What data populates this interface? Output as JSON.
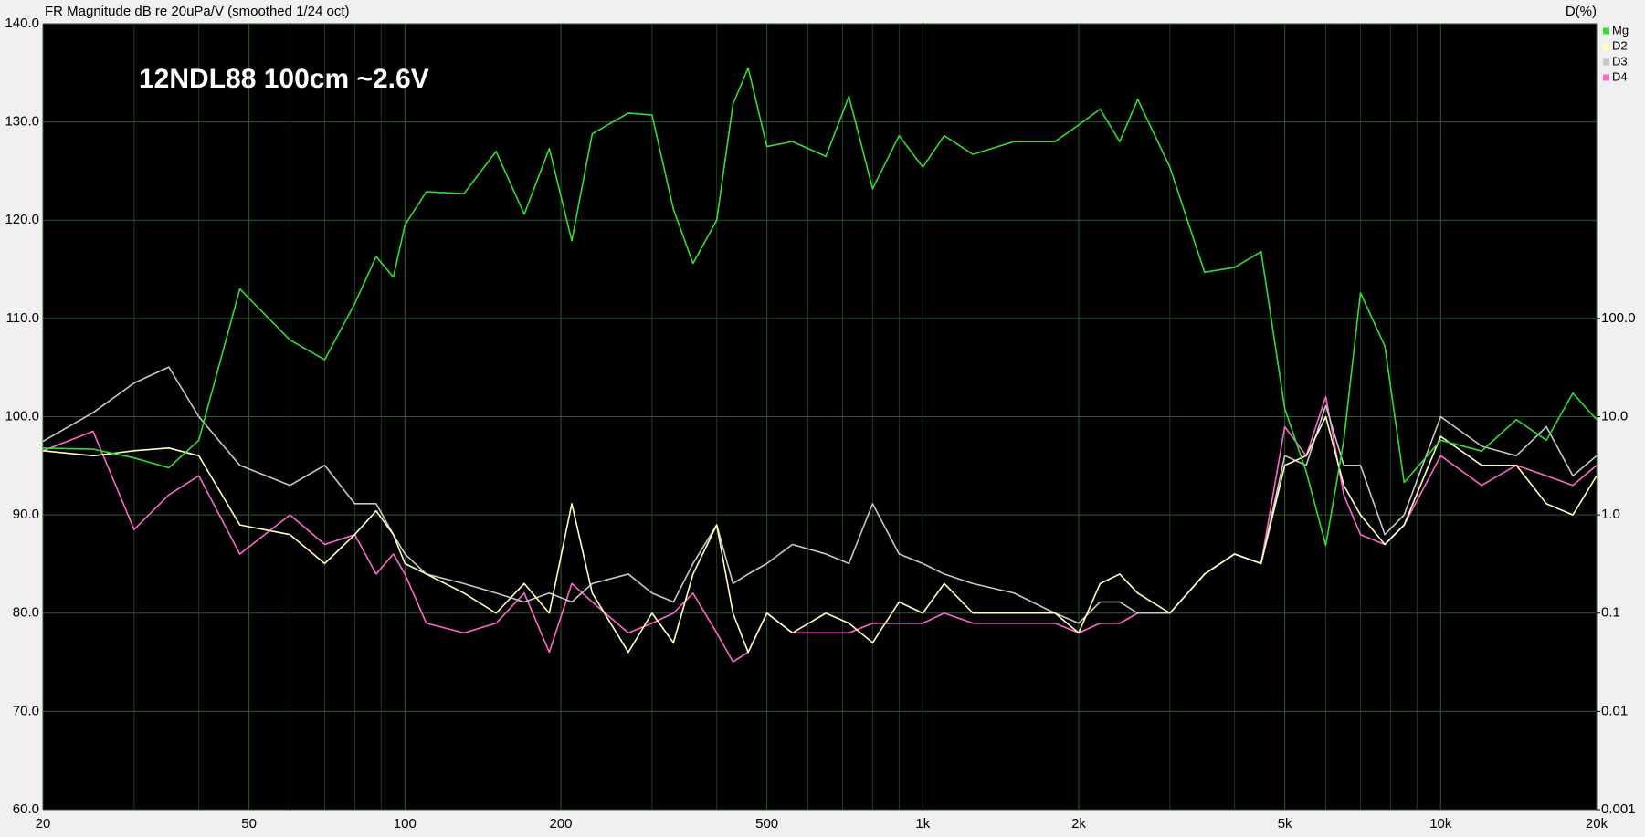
{
  "chart_data": {
    "type": "line",
    "title": "FR Magnitude dB re 20uPa/V (smoothed 1/24 oct)",
    "y2_label": "D(%)",
    "annotation": "12NDL88 100cm ~2.6V",
    "xscale": "log",
    "y2scale": "log",
    "grid": true,
    "legend": "top-right",
    "xlim": [
      20,
      20000
    ],
    "xticks": [
      20,
      50,
      100,
      200,
      500,
      {
        "value": 1000,
        "label": "1k"
      },
      {
        "value": 2000,
        "label": "2k"
      },
      {
        "value": 5000,
        "label": "5k"
      },
      {
        "value": 10000,
        "label": "10k"
      },
      {
        "value": 20000,
        "label": "20k"
      }
    ],
    "x_minor_ticks": [
      30,
      40,
      60,
      70,
      80,
      90,
      300,
      400,
      600,
      700,
      800,
      900,
      3000,
      4000,
      6000,
      7000,
      8000,
      9000
    ],
    "ylim": [
      60,
      140
    ],
    "yticks": [
      {
        "value": 60,
        "label": "60.0"
      },
      {
        "value": 70,
        "label": "70.0"
      },
      {
        "value": 80,
        "label": "80.0"
      },
      {
        "value": 90,
        "label": "90.0"
      },
      {
        "value": 100,
        "label": "100.0"
      },
      {
        "value": 110,
        "label": "110.0"
      },
      {
        "value": 120,
        "label": "120.0"
      },
      {
        "value": 130,
        "label": "130.0"
      },
      {
        "value": 140,
        "label": "140.0"
      }
    ],
    "y2lim": [
      0.001,
      100000
    ],
    "y2ticks": [
      0.001,
      0.01,
      0.1,
      {
        "value": 1,
        "label": "1.0"
      },
      {
        "value": 10,
        "label": "10.0"
      },
      {
        "value": 100,
        "label": "100.0"
      }
    ],
    "x": [
      20,
      25,
      30,
      35,
      40,
      48,
      60,
      70,
      80,
      88,
      95,
      100,
      110,
      130,
      150,
      170,
      190,
      210,
      230,
      270,
      300,
      330,
      360,
      400,
      430,
      460,
      500,
      560,
      650,
      720,
      800,
      900,
      1000,
      1100,
      1250,
      1500,
      1800,
      2000,
      2200,
      2400,
      2600,
      3000,
      3500,
      4000,
      4500,
      5000,
      5500,
      6000,
      6500,
      7000,
      7800,
      8500,
      10000,
      12000,
      14000,
      16000,
      18000,
      20000
    ],
    "series": [
      {
        "name": "Mg",
        "color": "#33dd33",
        "values": [
          96.8,
          96.7,
          95.8,
          94.8,
          97.6,
          113,
          107.8,
          105.8,
          111.5,
          116.3,
          114.2,
          119.5,
          122.9,
          122.7,
          127,
          120.6,
          127.3,
          117.9,
          128.8,
          130.9,
          130.7,
          121.1,
          115.6,
          120,
          131.8,
          135.5,
          127.5,
          128,
          126.5,
          132.6,
          123.2,
          128.6,
          125.4,
          128.6,
          126.7,
          128,
          128,
          129.7,
          131.3,
          128,
          132.3,
          125.4,
          114.7,
          115.2,
          116.8,
          100.8,
          94.4,
          86.9,
          97.6,
          112.6,
          107.2,
          93.3,
          97.6,
          96.5,
          99.7,
          97.6,
          102.4,
          99.7
        ]
      },
      {
        "name": "D2",
        "color": "#ffffc0",
        "axis": "y2",
        "values": [
          4.5,
          4.0,
          4.5,
          4.8,
          4.0,
          0.79,
          0.63,
          0.32,
          0.63,
          1.1,
          0.63,
          0.32,
          0.25,
          0.16,
          0.1,
          0.2,
          0.1,
          1.3,
          0.16,
          0.04,
          0.1,
          0.05,
          0.25,
          0.79,
          0.1,
          0.04,
          0.1,
          0.063,
          0.1,
          0.079,
          0.05,
          0.13,
          0.1,
          0.2,
          0.1,
          0.1,
          0.1,
          0.063,
          0.2,
          0.25,
          0.16,
          0.1,
          0.25,
          0.4,
          0.32,
          3.2,
          4.0,
          10,
          2.0,
          1.0,
          0.5,
          0.79,
          6.3,
          3.2,
          3.2,
          1.3,
          1.0,
          2.5
        ]
      },
      {
        "name": "D3",
        "color": "#c8c8c8",
        "axis": "y2",
        "values": [
          5.6,
          11,
          22,
          32,
          10,
          3.2,
          2.0,
          3.2,
          1.3,
          1.3,
          0.63,
          0.4,
          0.25,
          0.2,
          0.16,
          0.13,
          0.16,
          0.13,
          0.2,
          0.25,
          0.16,
          0.13,
          0.32,
          0.79,
          0.2,
          0.25,
          0.32,
          0.5,
          0.4,
          0.32,
          1.3,
          0.4,
          0.32,
          0.25,
          0.2,
          0.16,
          0.1,
          0.079,
          0.13,
          0.13,
          0.1,
          0.1,
          0.25,
          0.4,
          0.32,
          4.0,
          3.2,
          13,
          3.2,
          3.2,
          0.63,
          1.0,
          10,
          5.0,
          4.0,
          7.9,
          2.5,
          4.0
        ]
      },
      {
        "name": "D4",
        "color": "#ff66cc",
        "axis": "y2",
        "values": [
          4.5,
          7.1,
          0.71,
          1.6,
          2.5,
          0.4,
          1.0,
          0.5,
          0.63,
          0.25,
          0.4,
          0.25,
          0.079,
          0.063,
          0.079,
          0.16,
          0.04,
          0.2,
          0.13,
          0.063,
          0.079,
          0.1,
          0.16,
          0.063,
          0.032,
          0.04,
          0.1,
          0.063,
          0.063,
          0.063,
          0.079,
          0.079,
          0.079,
          0.1,
          0.079,
          0.079,
          0.079,
          0.063,
          0.079,
          0.079,
          0.1,
          0.1,
          0.25,
          0.4,
          0.32,
          7.9,
          4.0,
          16,
          1.6,
          0.63,
          0.5,
          0.79,
          4.0,
          2.0,
          3.2,
          2.5,
          2.0,
          3.2
        ]
      }
    ]
  }
}
